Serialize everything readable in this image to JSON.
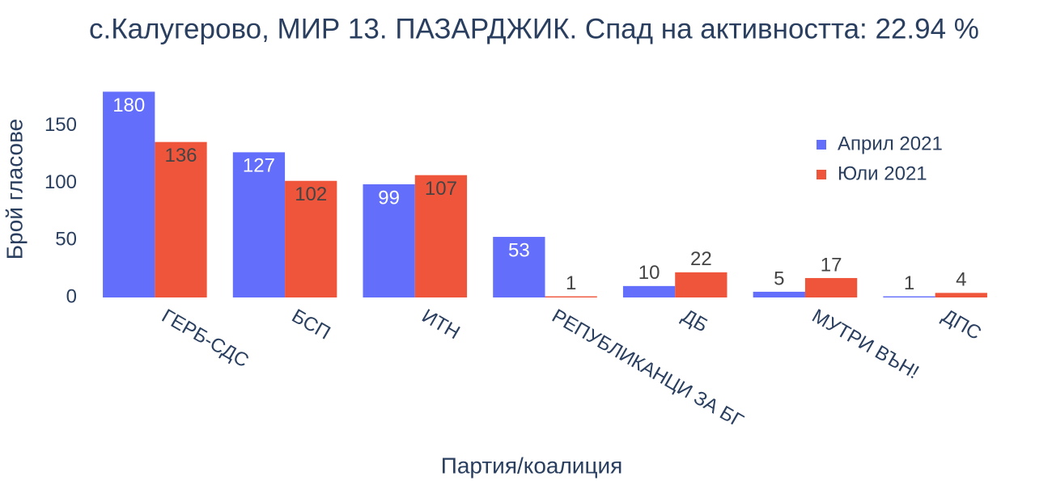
{
  "chart_data": {
    "type": "bar",
    "title": "с.Калугерово, МИР 13. ПАЗАРДЖИК. Спад на активността: 22.94 %",
    "x_label": "Партия/коалиция",
    "y_label": "Брой гласове",
    "categories": [
      "ГЕРБ-СДС",
      "БСП",
      "ИТН",
      "РЕПУБЛИКАНЦИ ЗА БГ",
      "ДБ",
      "МУТРИ ВЪН!",
      "ДПС"
    ],
    "series": [
      {
        "name": "Април 2021",
        "color": "#636efa",
        "values": [
          180,
          127,
          99,
          53,
          10,
          5,
          1
        ]
      },
      {
        "name": "Юли 2021",
        "color": "#ef553b",
        "values": [
          136,
          102,
          107,
          1,
          22,
          17,
          4
        ]
      }
    ],
    "ylim": [
      0,
      189.5
    ],
    "yticks": [
      0,
      50,
      100,
      150
    ],
    "legend": "upper-right"
  }
}
